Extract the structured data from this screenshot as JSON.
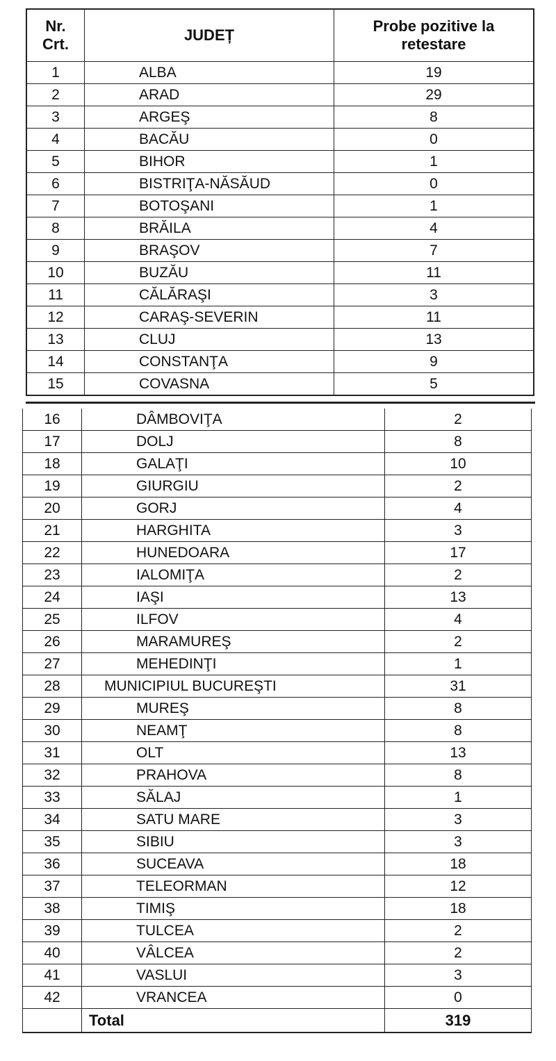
{
  "header": {
    "nr_line1": "Nr.",
    "nr_line2": "Crt.",
    "judet": "JUDEȚ",
    "probe_line1": "Probe pozitive la",
    "probe_line2": "retestare"
  },
  "rows": [
    {
      "nr": "1",
      "judet": "ALBA",
      "probe": "19"
    },
    {
      "nr": "2",
      "judet": "ARAD",
      "probe": "29"
    },
    {
      "nr": "3",
      "judet": "ARGEŞ",
      "probe": "8"
    },
    {
      "nr": "4",
      "judet": "BACĂU",
      "probe": "0"
    },
    {
      "nr": "5",
      "judet": "BIHOR",
      "probe": "1"
    },
    {
      "nr": "6",
      "judet": "BISTRIŢA-NĂSĂUD",
      "probe": "0"
    },
    {
      "nr": "7",
      "judet": "BOTOŞANI",
      "probe": "1"
    },
    {
      "nr": "8",
      "judet": "BRĂILA",
      "probe": "4"
    },
    {
      "nr": "9",
      "judet": "BRAŞOV",
      "probe": "7"
    },
    {
      "nr": "10",
      "judet": "BUZĂU",
      "probe": "11"
    },
    {
      "nr": "11",
      "judet": "CĂLĂRAŞI",
      "probe": "3"
    },
    {
      "nr": "12",
      "judet": "CARAŞ-SEVERIN",
      "probe": "11"
    },
    {
      "nr": "13",
      "judet": "CLUJ",
      "probe": "13"
    },
    {
      "nr": "14",
      "judet": "CONSTANŢA",
      "probe": "9"
    },
    {
      "nr": "15",
      "judet": "COVASNA",
      "probe": "5"
    },
    {
      "nr": "16",
      "judet": "DÂMBOVIŢA",
      "probe": "2"
    },
    {
      "nr": "17",
      "judet": "DOLJ",
      "probe": "8"
    },
    {
      "nr": "18",
      "judet": "GALAŢI",
      "probe": "10"
    },
    {
      "nr": "19",
      "judet": "GIURGIU",
      "probe": "2"
    },
    {
      "nr": "20",
      "judet": "GORJ",
      "probe": "4"
    },
    {
      "nr": "21",
      "judet": "HARGHITA",
      "probe": "3"
    },
    {
      "nr": "22",
      "judet": "HUNEDOARA",
      "probe": "17"
    },
    {
      "nr": "23",
      "judet": "IALOMIŢA",
      "probe": "2"
    },
    {
      "nr": "24",
      "judet": "IAŞI",
      "probe": "13"
    },
    {
      "nr": "25",
      "judet": "ILFOV",
      "probe": "4"
    },
    {
      "nr": "26",
      "judet": "MARAMUREŞ",
      "probe": "2"
    },
    {
      "nr": "27",
      "judet": "MEHEDINŢI",
      "probe": "1"
    },
    {
      "nr": "28",
      "judet": "MUNICIPIUL BUCUREŞTI",
      "probe": "31"
    },
    {
      "nr": "29",
      "judet": "MUREŞ",
      "probe": "8"
    },
    {
      "nr": "30",
      "judet": "NEAMŢ",
      "probe": "8"
    },
    {
      "nr": "31",
      "judet": "OLT",
      "probe": "13"
    },
    {
      "nr": "32",
      "judet": "PRAHOVA",
      "probe": "8"
    },
    {
      "nr": "33",
      "judet": "SĂLAJ",
      "probe": "1"
    },
    {
      "nr": "34",
      "judet": "SATU MARE",
      "probe": "3"
    },
    {
      "nr": "35",
      "judet": "SIBIU",
      "probe": "3"
    },
    {
      "nr": "36",
      "judet": "SUCEAVA",
      "probe": "18"
    },
    {
      "nr": "37",
      "judet": "TELEORMAN",
      "probe": "12"
    },
    {
      "nr": "38",
      "judet": "TIMIŞ",
      "probe": "18"
    },
    {
      "nr": "39",
      "judet": "TULCEA",
      "probe": "2"
    },
    {
      "nr": "40",
      "judet": "VÂLCEA",
      "probe": "2"
    },
    {
      "nr": "41",
      "judet": "VASLUI",
      "probe": "3"
    },
    {
      "nr": "42",
      "judet": "VRANCEA",
      "probe": "0"
    }
  ],
  "total": {
    "label": "Total",
    "value": "319"
  }
}
